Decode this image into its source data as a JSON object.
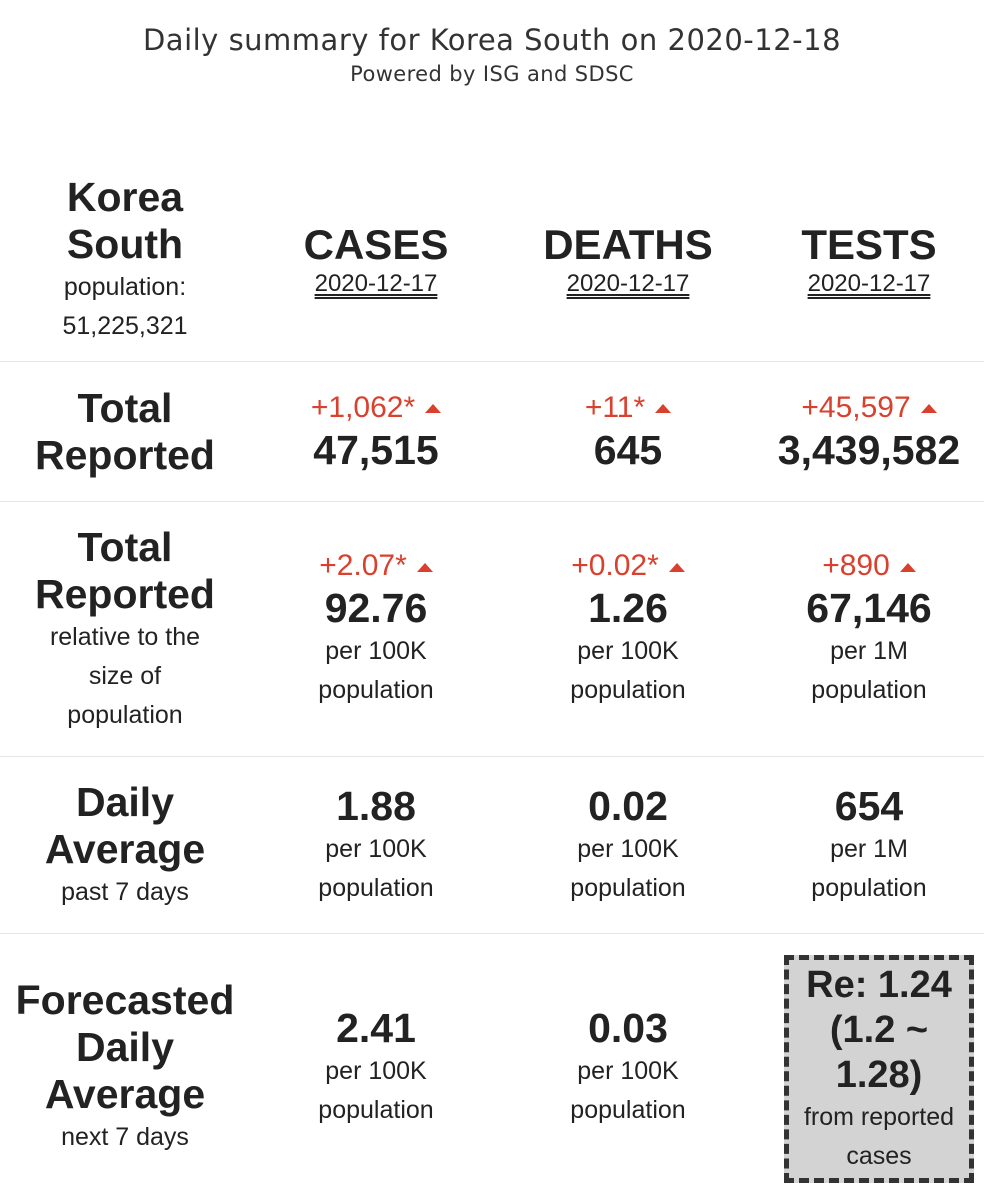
{
  "header": {
    "title": "Daily summary for Korea South on 2020-12-18",
    "subtitle": "Powered by ISG and SDSC"
  },
  "country": {
    "name_line1": "Korea",
    "name_line2": "South",
    "population_label": "population:",
    "population": "51,225,321"
  },
  "columns": [
    {
      "label": "CASES",
      "date": "2020-12-17"
    },
    {
      "label": "DEATHS",
      "date": "2020-12-17"
    },
    {
      "label": "TESTS",
      "date": "2020-12-17"
    }
  ],
  "total_reported": {
    "label_line1": "Total",
    "label_line2": "Reported",
    "cells": [
      {
        "delta": "+1,062*",
        "value": "47,515"
      },
      {
        "delta": "+11*",
        "value": "645"
      },
      {
        "delta": "+45,597",
        "value": "3,439,582"
      }
    ]
  },
  "relative": {
    "label_line1": "Total",
    "label_line2": "Reported",
    "sub_line1": "relative to the",
    "sub_line2": "size of",
    "sub_line3": "population",
    "cells": [
      {
        "delta": "+2.07*",
        "value": "92.76",
        "unit": "per 100K",
        "unit2": "population"
      },
      {
        "delta": "+0.02*",
        "value": "1.26",
        "unit": "per 100K",
        "unit2": "population"
      },
      {
        "delta": "+890",
        "value": "67,146",
        "unit": "per 1M",
        "unit2": "population"
      }
    ]
  },
  "daily_average": {
    "label_line1": "Daily",
    "label_line2": "Average",
    "sub": "past 7 days",
    "cells": [
      {
        "value": "1.88",
        "unit": "per 100K",
        "unit2": "population"
      },
      {
        "value": "0.02",
        "unit": "per 100K",
        "unit2": "population"
      },
      {
        "value": "654",
        "unit": "per 1M",
        "unit2": "population"
      }
    ]
  },
  "forecast": {
    "label_line1": "Forecasted",
    "label_line2": "Daily",
    "label_line3": "Average",
    "sub": "next 7 days",
    "cells": [
      {
        "value": "2.41",
        "unit": "per 100K",
        "unit2": "population"
      },
      {
        "value": "0.03",
        "unit": "per 100K",
        "unit2": "population"
      }
    ],
    "re": {
      "line1": "Re: 1.24",
      "line2": "(1.2 ~",
      "line3": "1.28)",
      "sub1": "from reported",
      "sub2": "cases"
    }
  },
  "colors": {
    "accent_red": "#d9412e",
    "text": "#222222",
    "separator": "#e6e6e6",
    "re_box_bg": "#d3d3d3"
  }
}
